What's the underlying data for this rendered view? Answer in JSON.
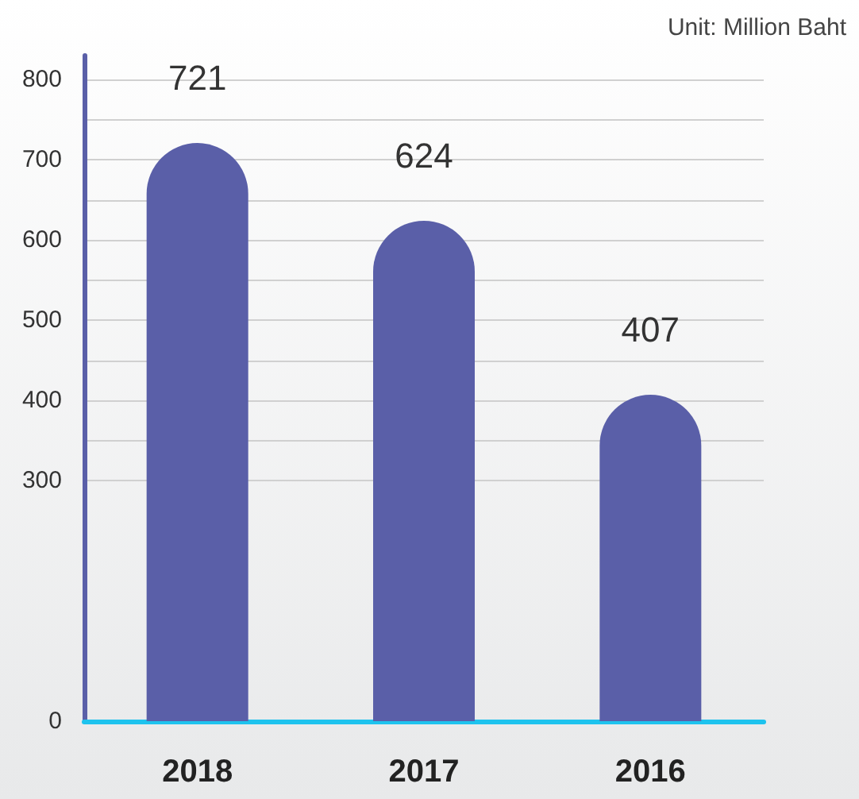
{
  "chart_data": {
    "type": "bar",
    "categories": [
      "2018",
      "2017",
      "2016"
    ],
    "values": [
      721,
      624,
      407
    ],
    "color": "#5a5fa8",
    "data_labels": true,
    "ylim": [
      0,
      830
    ],
    "yticks": [
      0,
      300,
      {
        "value": 350,
        "label": null
      },
      400,
      {
        "value": 450,
        "label": null
      },
      500,
      {
        "value": 550,
        "label": null
      },
      600,
      {
        "value": 650,
        "label": null
      },
      700,
      {
        "value": 750,
        "label": null
      },
      800
    ],
    "grid": "y",
    "annotations": [
      "Unit: Million Baht"
    ]
  }
}
